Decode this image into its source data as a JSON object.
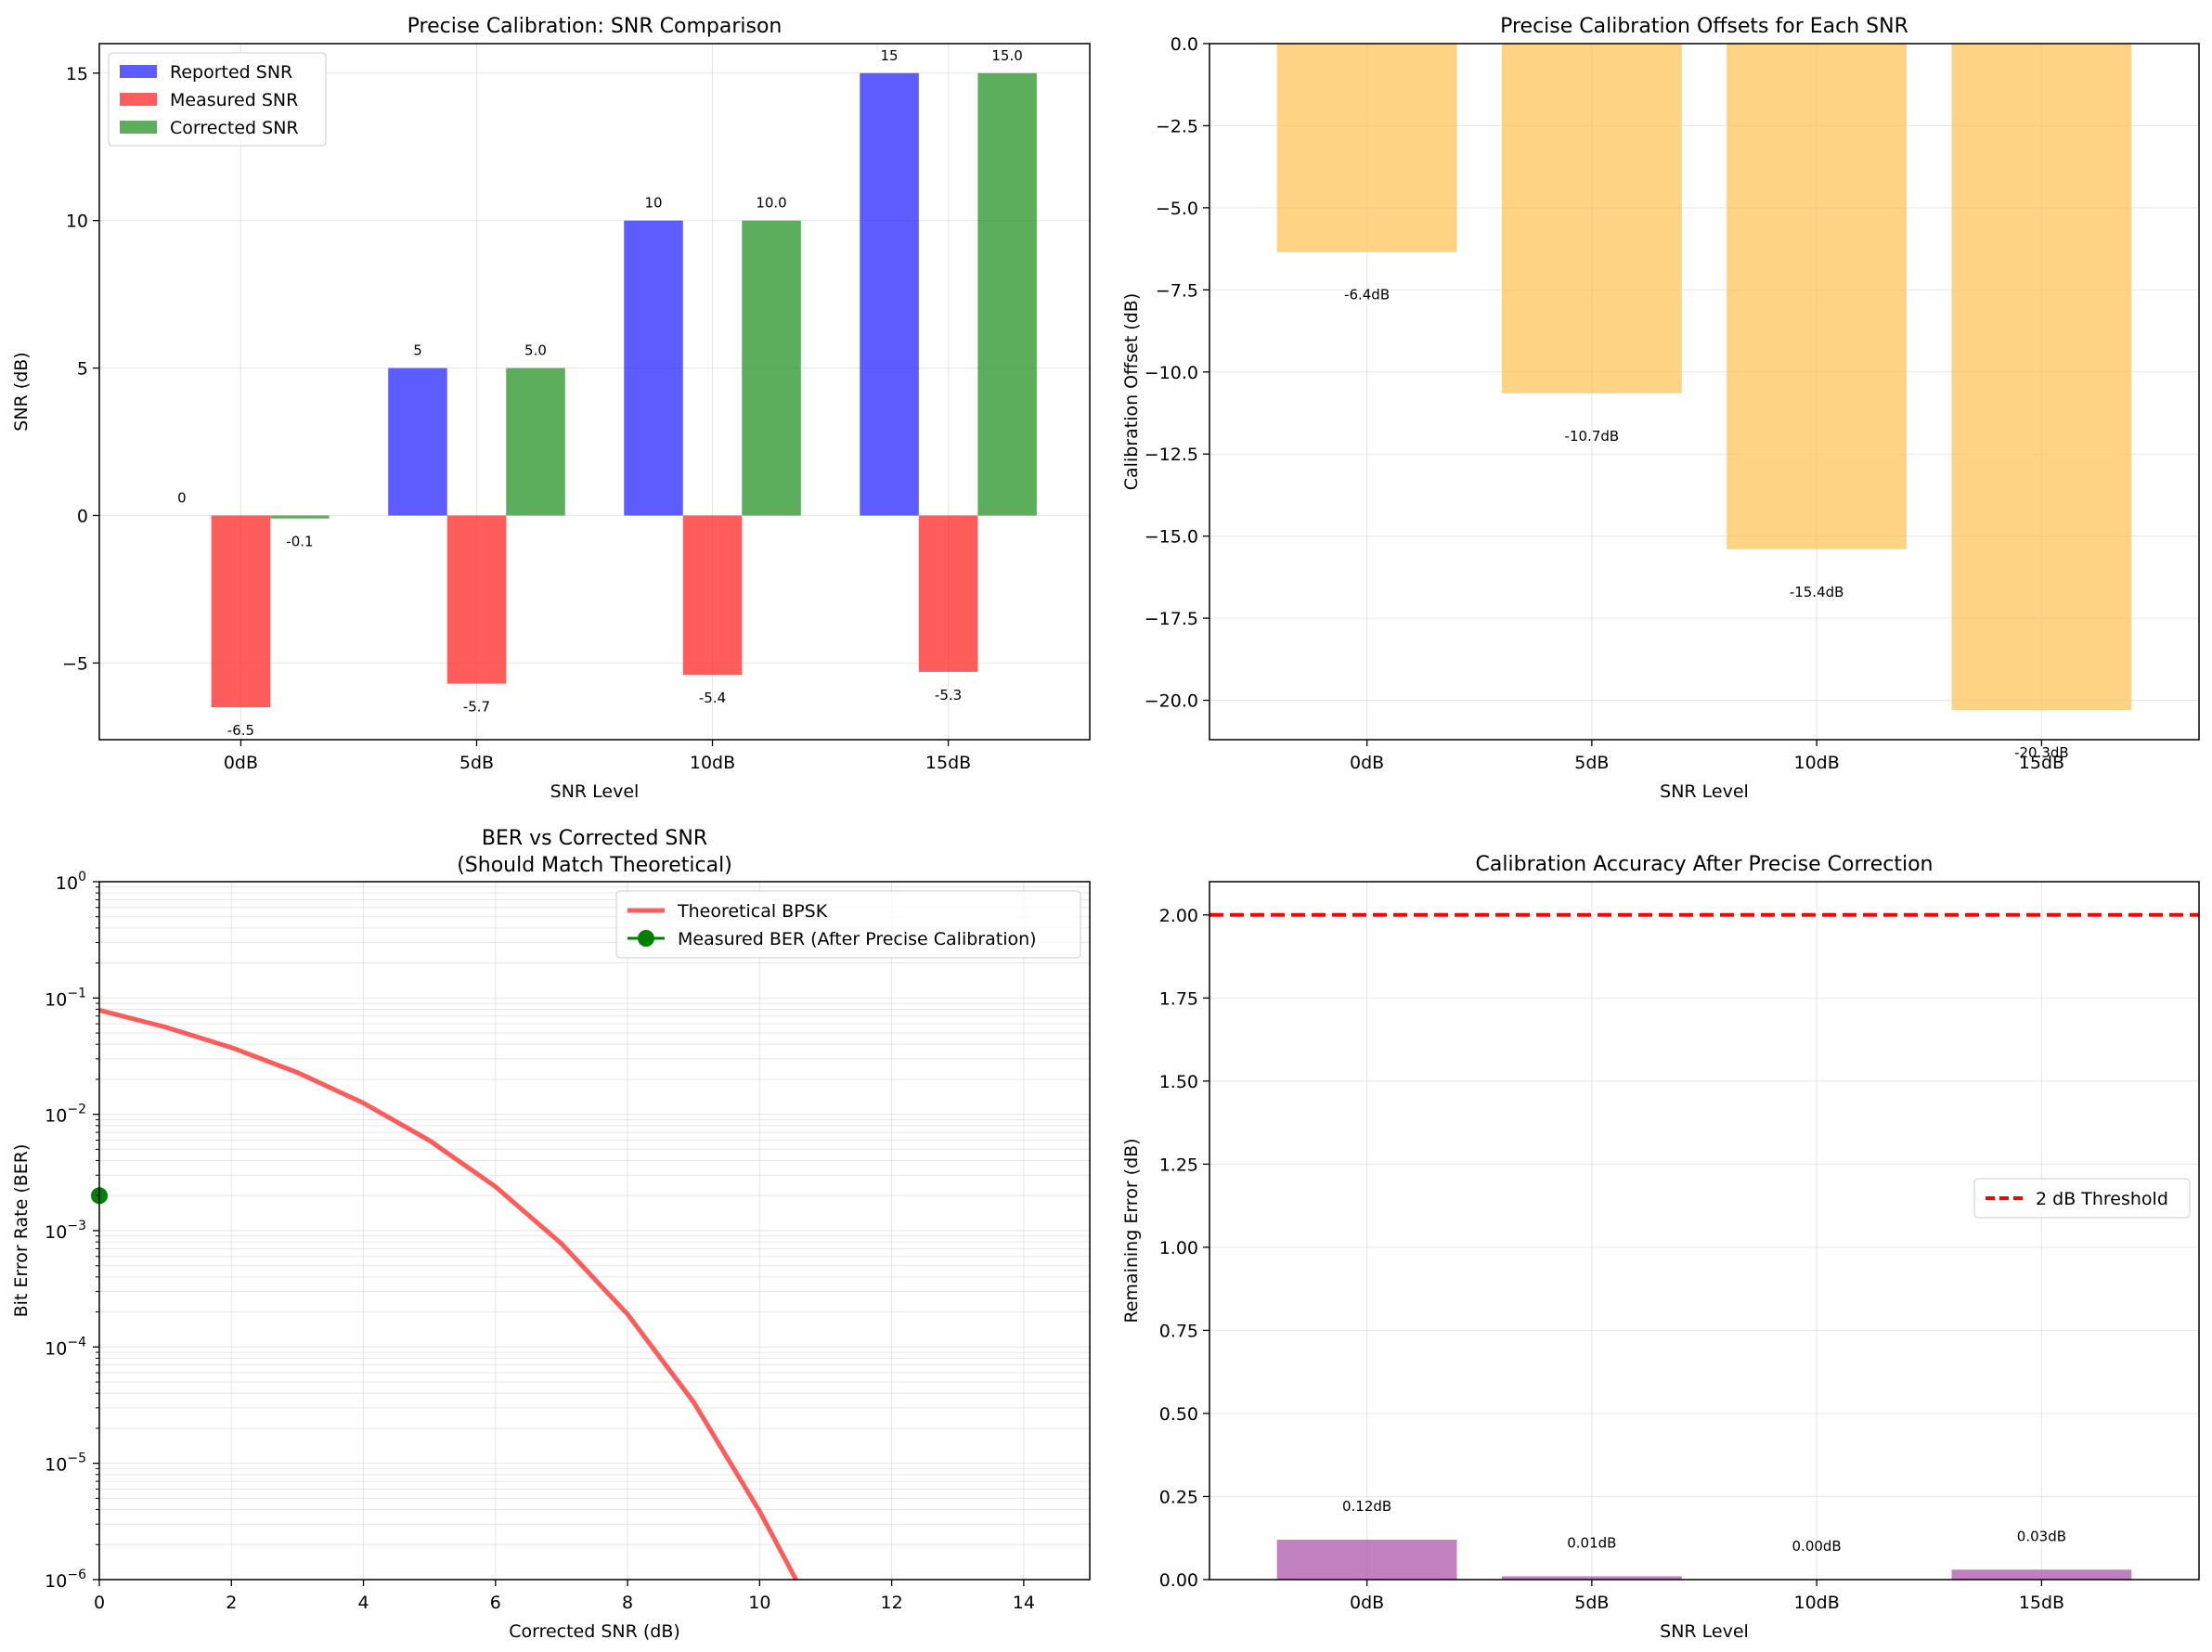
{
  "chart_data": [
    {
      "type": "bar",
      "title": "Precise Calibration: SNR Comparison",
      "xlabel": "SNR Level",
      "ylabel": "SNR (dB)",
      "categories": [
        "0dB",
        "5dB",
        "10dB",
        "15dB"
      ],
      "ylim": [
        -7.6,
        16
      ],
      "yticks": [
        -5,
        0,
        5,
        10,
        15
      ],
      "ytick_labels": [
        "−5",
        "0",
        "5",
        "10",
        "15"
      ],
      "grid": true,
      "legend": "top-left",
      "series": [
        {
          "name": "Reported SNR",
          "color": "#3333ff",
          "values": [
            0,
            5,
            10,
            15
          ],
          "labels": [
            "0",
            "5",
            "10",
            "15"
          ]
        },
        {
          "name": "Measured SNR",
          "color": "#ff3333",
          "values": [
            -6.5,
            -5.7,
            -5.4,
            -5.3
          ],
          "labels": [
            "-6.5",
            "-5.7",
            "-5.4",
            "-5.3"
          ]
        },
        {
          "name": "Corrected SNR",
          "color": "#339933",
          "values": [
            -0.1,
            5.0,
            10.0,
            15.0
          ],
          "labels": [
            "-0.1",
            "5.0",
            "10.0",
            "15.0"
          ]
        }
      ]
    },
    {
      "type": "bar",
      "title": "Precise Calibration Offsets for Each SNR",
      "xlabel": "SNR Level",
      "ylabel": "Calibration Offset (dB)",
      "categories": [
        "0dB",
        "5dB",
        "10dB",
        "15dB"
      ],
      "ylim": [
        -21.2,
        0
      ],
      "yticks": [
        0,
        -2.5,
        -5,
        -7.5,
        -10,
        -12.5,
        -15,
        -17.5,
        -20
      ],
      "ytick_labels": [
        "0.0",
        "−2.5",
        "−5.0",
        "−7.5",
        "−10.0",
        "−12.5",
        "−15.0",
        "−17.5",
        "−20.0"
      ],
      "grid": true,
      "series": [
        {
          "color": "#ffc050",
          "values": [
            -6.35,
            -10.65,
            -15.4,
            -20.3
          ],
          "labels": [
            "-6.4dB",
            "-10.7dB",
            "-15.4dB",
            "-20.3dB"
          ]
        }
      ]
    },
    {
      "type": "line",
      "title": "BER vs Corrected SNR",
      "subtitle": "(Should Match Theoretical)",
      "xlabel": "Corrected SNR (dB)",
      "ylabel": "Bit Error Rate (BER)",
      "xlim": [
        0,
        15
      ],
      "xticks": [
        0,
        2,
        4,
        6,
        8,
        10,
        12,
        14
      ],
      "ylim": [
        1e-06,
        1
      ],
      "yscale": "log",
      "ytick_labels": [
        {
          "exp": 0,
          "base": "10",
          "sup": "0"
        },
        {
          "exp": -1,
          "base": "10",
          "sup": "−1"
        },
        {
          "exp": -2,
          "base": "10",
          "sup": "−2"
        },
        {
          "exp": -3,
          "base": "10",
          "sup": "−3"
        },
        {
          "exp": -4,
          "base": "10",
          "sup": "−4"
        },
        {
          "exp": -5,
          "base": "10",
          "sup": "−5"
        },
        {
          "exp": -6,
          "base": "10",
          "sup": "−6"
        }
      ],
      "grid": true,
      "legend": "top-right",
      "series": [
        {
          "name": "Theoretical BPSK",
          "color": "#ff3333",
          "style": "solid",
          "x": [
            0,
            1,
            2,
            3,
            4,
            5,
            6,
            7,
            8,
            9,
            10,
            10.55
          ],
          "y": [
            0.0786,
            0.0563,
            0.0375,
            0.0229,
            0.0125,
            0.00595,
            0.00239,
            0.000773,
            0.000191,
            3.36e-05,
            3.87e-06,
            1e-06
          ]
        },
        {
          "name": "Measured BER (After Precise Calibration)",
          "color": "#008000",
          "style": "solid-marker",
          "x": [
            0
          ],
          "y": [
            0.002
          ]
        }
      ]
    },
    {
      "type": "bar",
      "title": "Calibration Accuracy After Precise Correction",
      "xlabel": "SNR Level",
      "ylabel": "Remaining Error (dB)",
      "categories": [
        "0dB",
        "5dB",
        "10dB",
        "15dB"
      ],
      "ylim": [
        0,
        2.1
      ],
      "yticks": [
        0,
        0.25,
        0.5,
        0.75,
        1.0,
        1.25,
        1.5,
        1.75,
        2.0
      ],
      "ytick_labels": [
        "0.00",
        "0.25",
        "0.50",
        "0.75",
        "1.00",
        "1.25",
        "1.50",
        "1.75",
        "2.00"
      ],
      "grid": true,
      "legend": "center-right",
      "threshold": {
        "name": "2 dB Threshold",
        "value": 2.0,
        "color": "#ff0000"
      },
      "series": [
        {
          "color": "#a64ca6",
          "values": [
            0.12,
            0.01,
            0.0,
            0.03
          ],
          "labels": [
            "0.12dB",
            "0.01dB",
            "0.00dB",
            "0.03dB"
          ]
        }
      ]
    }
  ]
}
